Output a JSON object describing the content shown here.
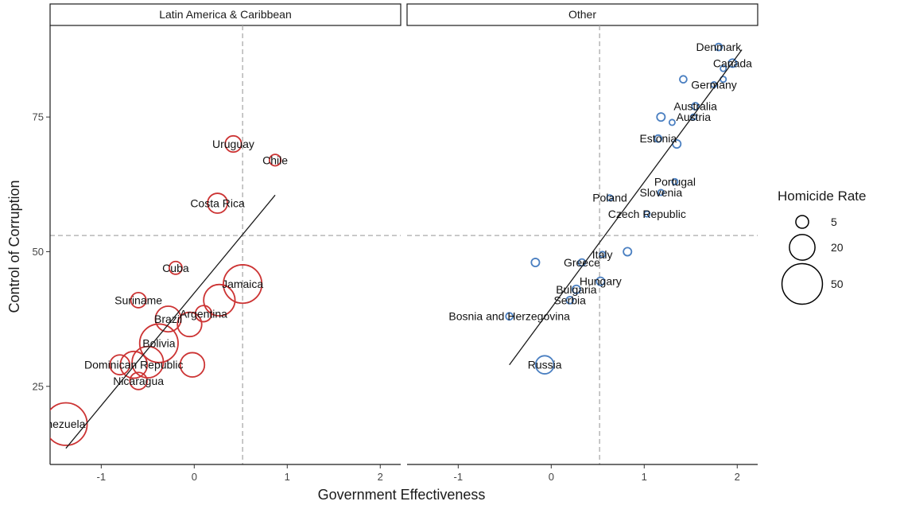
{
  "chart_data": {
    "type": "scatter",
    "xlabel": "Government Effectiveness",
    "ylabel": "Control of Corruption",
    "xlim": [
      -1.55,
      2.22
    ],
    "ylim": [
      10.5,
      92
    ],
    "x_ticks": [
      -1,
      0,
      1,
      2
    ],
    "y_ticks": [
      25,
      50,
      75
    ],
    "grid": false,
    "ref_lines": {
      "x": 0.52,
      "y": 53
    },
    "legend": {
      "title": "Homicide Rate",
      "position": "right",
      "entries": [
        {
          "label": "5",
          "value": 5
        },
        {
          "label": "20",
          "value": 20
        },
        {
          "label": "50",
          "value": 50
        }
      ]
    },
    "facets": [
      {
        "name": "Latin America & Caribbean",
        "color": "#cc3333",
        "fit": {
          "x": [
            -1.38,
            0.87
          ],
          "y": [
            13.5,
            60.5
          ]
        },
        "points": [
          {
            "label": "Venezuela",
            "display": "nezuela",
            "x": -1.38,
            "y": 18,
            "size": 55
          },
          {
            "label": "Nicaragua",
            "x": -0.6,
            "y": 26,
            "size": 9
          },
          {
            "label": "Dominican Republic",
            "x": -0.65,
            "y": 29,
            "size": 22
          },
          {
            "label": "",
            "x": -0.5,
            "y": 29.5,
            "size": 30
          },
          {
            "label": "",
            "x": -0.8,
            "y": 29,
            "size": 12
          },
          {
            "label": "Bolivia",
            "x": -0.38,
            "y": 33,
            "size": 45
          },
          {
            "label": "",
            "x": -0.02,
            "y": 29,
            "size": 18
          },
          {
            "label": "Brazil",
            "x": -0.28,
            "y": 37.5,
            "size": 20
          },
          {
            "label": "",
            "x": -0.05,
            "y": 36.5,
            "size": 18
          },
          {
            "label": "Argentina",
            "x": 0.1,
            "y": 38.5,
            "size": 8
          },
          {
            "label": "Suriname",
            "x": -0.6,
            "y": 41,
            "size": 7
          },
          {
            "label": "Cuba",
            "x": -0.2,
            "y": 47,
            "size": 5
          },
          {
            "label": "",
            "x": 0.27,
            "y": 41,
            "size": 30
          },
          {
            "label": "Jamaica",
            "x": 0.52,
            "y": 44,
            "size": 45
          },
          {
            "label": "Costa Rica",
            "x": 0.25,
            "y": 59,
            "size": 12
          },
          {
            "label": "Uruguay",
            "x": 0.42,
            "y": 70,
            "size": 8
          },
          {
            "label": "Chile",
            "x": 0.87,
            "y": 67,
            "size": 4
          }
        ]
      },
      {
        "name": "Other",
        "color": "#4a7fc1",
        "fit": {
          "x": [
            -0.45,
            2.05
          ],
          "y": [
            29,
            87.5
          ]
        },
        "points": [
          {
            "label": "Russia",
            "x": -0.07,
            "y": 29,
            "size": 10
          },
          {
            "label": "Bosnia and Herzegovina",
            "x": -0.45,
            "y": 38,
            "size": 1.5
          },
          {
            "label": "Serbia",
            "x": 0.2,
            "y": 41,
            "size": 1.5
          },
          {
            "label": "Bulgaria",
            "x": 0.27,
            "y": 43,
            "size": 2
          },
          {
            "label": "Hungary",
            "x": 0.53,
            "y": 44.5,
            "size": 2
          },
          {
            "label": "Greece",
            "x": 0.33,
            "y": 48,
            "size": 1.5
          },
          {
            "label": "",
            "x": -0.17,
            "y": 48,
            "size": 2
          },
          {
            "label": "Italy",
            "x": 0.55,
            "y": 49.5,
            "size": 1
          },
          {
            "label": "",
            "x": 0.82,
            "y": 50,
            "size": 2
          },
          {
            "label": "Czech Republic",
            "x": 1.03,
            "y": 57,
            "size": 1
          },
          {
            "label": "Poland",
            "x": 0.63,
            "y": 60,
            "size": 1
          },
          {
            "label": "Slovenia",
            "x": 1.18,
            "y": 61,
            "size": 1
          },
          {
            "label": "Portugal",
            "x": 1.33,
            "y": 63,
            "size": 1
          },
          {
            "label": "Estonia",
            "x": 1.15,
            "y": 71,
            "size": 1.5
          },
          {
            "label": "",
            "x": 1.35,
            "y": 70,
            "size": 2
          },
          {
            "label": "Austria",
            "x": 1.53,
            "y": 75,
            "size": 1
          },
          {
            "label": "",
            "x": 1.3,
            "y": 74,
            "size": 1
          },
          {
            "label": "",
            "x": 1.18,
            "y": 75,
            "size": 2
          },
          {
            "label": "Australia",
            "x": 1.55,
            "y": 77,
            "size": 1.5
          },
          {
            "label": "Germany",
            "x": 1.75,
            "y": 81,
            "size": 1
          },
          {
            "label": "",
            "x": 1.42,
            "y": 82,
            "size": 1.5
          },
          {
            "label": "",
            "x": 1.85,
            "y": 82,
            "size": 1
          },
          {
            "label": "Canada",
            "x": 1.95,
            "y": 85,
            "size": 2
          },
          {
            "label": "",
            "x": 1.85,
            "y": 84,
            "size": 1
          },
          {
            "label": "Denmark",
            "x": 1.8,
            "y": 88,
            "size": 1.5
          }
        ]
      }
    ]
  }
}
